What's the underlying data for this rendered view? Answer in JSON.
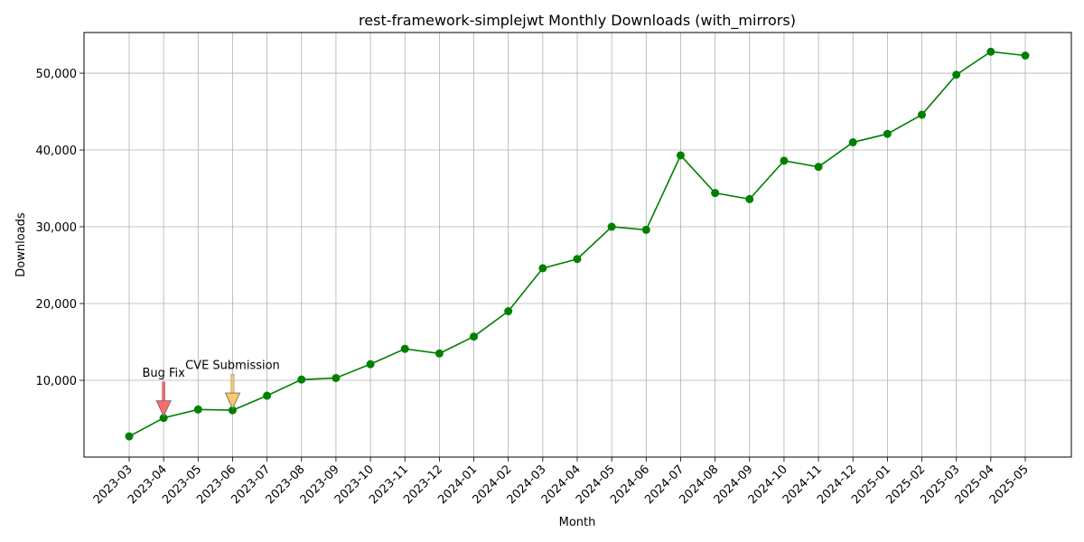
{
  "chart_data": {
    "type": "line",
    "title": "rest-framework-simplejwt Monthly Downloads (with_mirrors)",
    "xlabel": "Month",
    "ylabel": "Downloads",
    "categories": [
      "2023-03",
      "2023-04",
      "2023-05",
      "2023-06",
      "2023-07",
      "2023-08",
      "2023-09",
      "2023-10",
      "2023-11",
      "2023-12",
      "2024-01",
      "2024-02",
      "2024-03",
      "2024-04",
      "2024-05",
      "2024-06",
      "2024-07",
      "2024-08",
      "2024-09",
      "2024-10",
      "2024-11",
      "2024-12",
      "2025-01",
      "2025-02",
      "2025-03",
      "2025-04",
      "2025-05"
    ],
    "series": [
      {
        "values": [
          2700,
          5100,
          6200,
          6100,
          8000,
          10100,
          10300,
          12100,
          14100,
          13500,
          15700,
          19000,
          24600,
          25800,
          30000,
          29600,
          39300,
          34400,
          33600,
          38600,
          37800,
          41000,
          42100,
          44600,
          49800,
          52800,
          52300
        ],
        "color": "#008000"
      }
    ],
    "ylim": [
      0,
      55300
    ],
    "yticks": [
      10000,
      20000,
      30000,
      40000,
      50000
    ],
    "ytick_labels": [
      "10,000",
      "20,000",
      "30,000",
      "40,000",
      "50,000"
    ],
    "grid": true,
    "annotations": [
      {
        "text": "Bug Fix",
        "x": "2023-04",
        "y": 5100,
        "color": "#ff6b6b"
      },
      {
        "text": "CVE Submission",
        "x": "2023-06",
        "y": 6100,
        "color": "#ffc966"
      }
    ]
  }
}
